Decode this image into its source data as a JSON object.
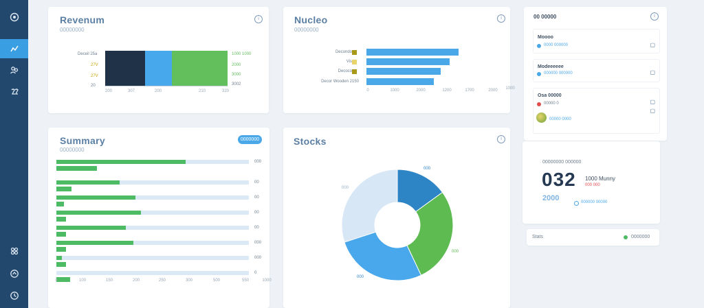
{
  "sidebar": {
    "icons": [
      "dashboard-icon",
      "analytics-icon",
      "users-icon",
      "reports-icon",
      "apps-icon",
      "support-icon",
      "settings-icon"
    ],
    "active_index": 1
  },
  "card_revenue": {
    "title": "Revenum",
    "subtitle": "00000000",
    "segment_labels_left": [
      "Deceil 25a",
      "27V",
      "20"
    ],
    "segment_labels_right": [
      "1000 1000",
      "2000",
      "3000",
      "3002"
    ],
    "x_ticks": [
      "200",
      "307",
      "200",
      "210",
      "320"
    ],
    "colors": [
      "#1f3248",
      "#47a8ec",
      "#63bf5c"
    ]
  },
  "card_nucleo": {
    "title": "Nucleo",
    "subtitle": "00000000",
    "row_labels": [
      "Decondo",
      "Vis",
      "Decoco",
      "Decor Wooden 2150"
    ],
    "x_ticks": [
      "0",
      "1000",
      "2000",
      "1200",
      "1700",
      "2000",
      "1000"
    ],
    "chart_data": {
      "type": "bar",
      "orientation": "horizontal",
      "categories": [
        "Decondo",
        "Vis",
        "Decoco",
        "Decor Wooden 2150"
      ],
      "values": [
        1620,
        1470,
        1310,
        1190
      ],
      "xlim": [
        0,
        2300
      ]
    }
  },
  "card_summary": {
    "title": "Summary",
    "subtitle": "00000000",
    "pill_label": "0000000",
    "x_ticks": [
      "0",
      "100",
      "150",
      "200",
      "250",
      "300",
      "500",
      "550",
      "1000"
    ],
    "rows": [
      {
        "value_label": "000",
        "fill": 0.67,
        "sub_fill": 0.21
      },
      {
        "value_label": "00",
        "fill": 0.33,
        "sub_fill": 0.08
      },
      {
        "value_label": "00",
        "fill": 0.41,
        "sub_fill": 0.04
      },
      {
        "value_label": "00",
        "fill": 0.44,
        "sub_fill": 0.05
      },
      {
        "value_label": "00",
        "fill": 0.36,
        "sub_fill": 0.05
      },
      {
        "value_label": "000",
        "fill": 0.4,
        "sub_fill": 0.05
      },
      {
        "value_label": "000",
        "fill": 0.03,
        "sub_fill": 0.05
      },
      {
        "value_label": "0",
        "fill": 0.0,
        "sub_fill": 0.07
      }
    ]
  },
  "card_stocks": {
    "title": "Stocks",
    "pie_labels": [
      "000",
      "000",
      "000",
      "000"
    ],
    "chart_data": {
      "type": "pie",
      "donut": true,
      "values": [
        0.15,
        0.28,
        0.27,
        0.3
      ],
      "colors": [
        "#2e85c5",
        "#5ebb52",
        "#49a8ec",
        "#d8e7f5"
      ]
    }
  },
  "right_panel": {
    "title": "00 00000",
    "items": [
      {
        "title": "Moooo",
        "sub": "0000 000000",
        "dot": "#4aa8e8"
      },
      {
        "title": "Modeeeeee",
        "sub": "000000 000000",
        "dot": "#4aa8e8"
      },
      {
        "title": "Osa 00000",
        "sub": "00000 0",
        "sub2": "00000 0000",
        "dot": "#e44c4c"
      }
    ]
  },
  "stat_card": {
    "caption": "00000000 000000",
    "value": "032",
    "desc": "1000 Munny",
    "desc_sub": "000 000",
    "badge": "2000",
    "sub_caption": "000000 00000"
  },
  "status_row": {
    "label": "Stats",
    "value": "0000000",
    "dot": "#4dbb63"
  }
}
